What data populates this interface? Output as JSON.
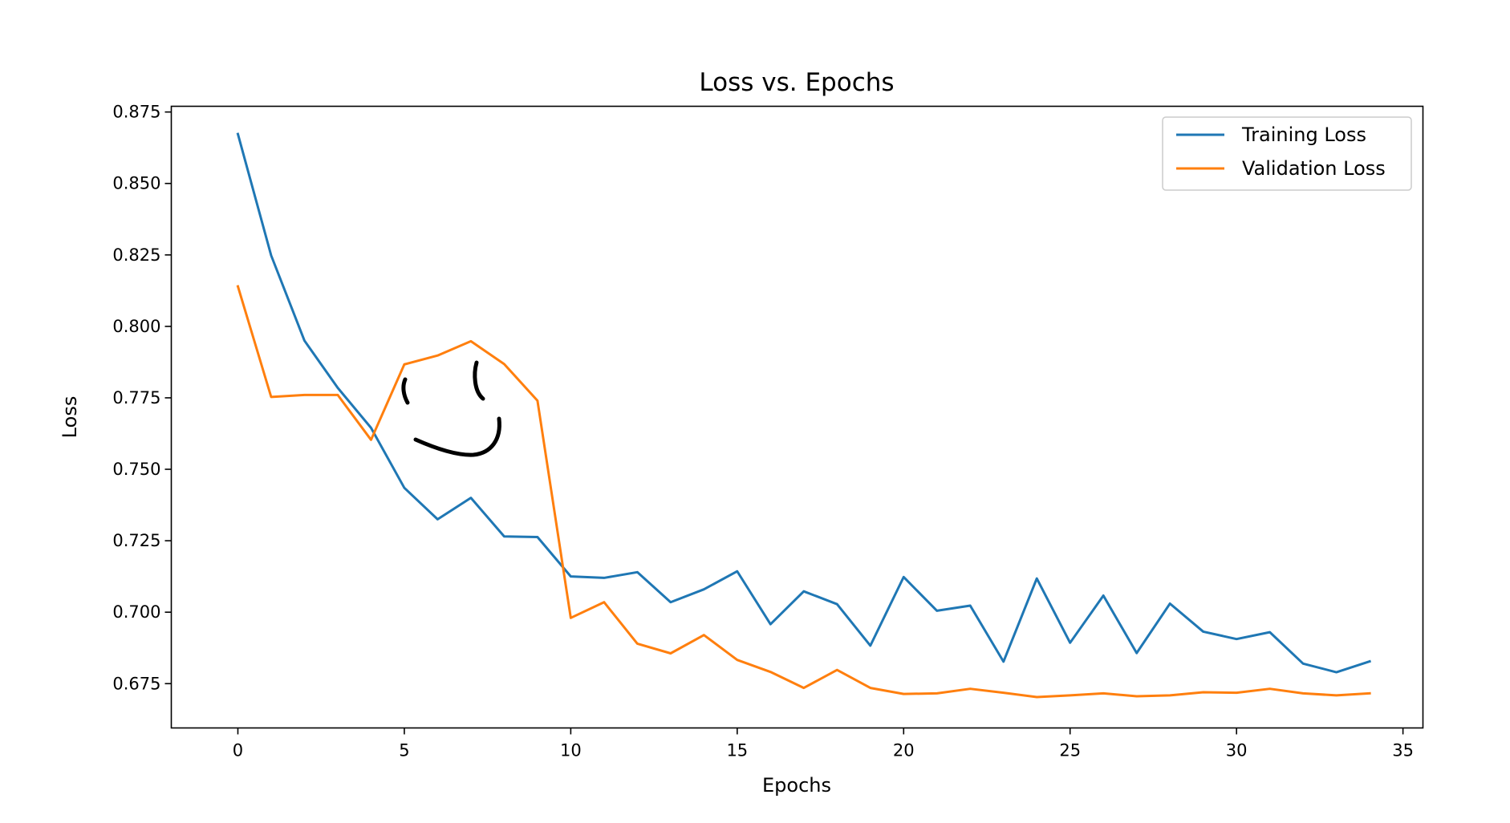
{
  "chart_data": {
    "type": "line",
    "title": "Loss vs. Epochs",
    "xlabel": "Epochs",
    "ylabel": "Loss",
    "xlim": [
      -2,
      35.6
    ],
    "ylim": [
      0.6595,
      0.877
    ],
    "xticks": [
      0,
      5,
      10,
      15,
      20,
      25,
      30,
      35
    ],
    "yticks": [
      0.675,
      0.7,
      0.725,
      0.75,
      0.775,
      0.8,
      0.825,
      0.85,
      0.875
    ],
    "ytick_labels": [
      "0.675",
      "0.700",
      "0.725",
      "0.750",
      "0.775",
      "0.800",
      "0.825",
      "0.850",
      "0.875"
    ],
    "grid": false,
    "legend_position": "upper right",
    "x": [
      0,
      1,
      2,
      3,
      4,
      5,
      6,
      7,
      8,
      9,
      10,
      11,
      12,
      13,
      14,
      15,
      16,
      17,
      18,
      19,
      20,
      21,
      22,
      23,
      24,
      25,
      26,
      27,
      28,
      29,
      30,
      31,
      32,
      33,
      34
    ],
    "series": [
      {
        "name": "Training Loss",
        "color": "#1f77b4",
        "values": [
          0.8673,
          0.8248,
          0.795,
          0.7785,
          0.7645,
          0.7435,
          0.7325,
          0.74,
          0.7265,
          0.7263,
          0.7125,
          0.712,
          0.714,
          0.7035,
          0.708,
          0.7143,
          0.6958,
          0.7073,
          0.7028,
          0.6883,
          0.7123,
          0.7005,
          0.7023,
          0.6827,
          0.7118,
          0.6893,
          0.7058,
          0.6857,
          0.703,
          0.6932,
          0.6906,
          0.693,
          0.682,
          0.679,
          0.6828
        ]
      },
      {
        "name": "Validation Loss",
        "color": "#ff7f0e",
        "values": [
          0.814,
          0.7753,
          0.776,
          0.776,
          0.7603,
          0.7867,
          0.7898,
          0.7948,
          0.7868,
          0.774,
          0.698,
          0.7035,
          0.689,
          0.6856,
          0.692,
          0.6833,
          0.6791,
          0.6735,
          0.6798,
          0.6735,
          0.6714,
          0.6716,
          0.6732,
          0.6718,
          0.6703,
          0.6709,
          0.6716,
          0.6706,
          0.6709,
          0.672,
          0.6718,
          0.6732,
          0.6716,
          0.6709,
          0.6716
        ]
      }
    ]
  }
}
